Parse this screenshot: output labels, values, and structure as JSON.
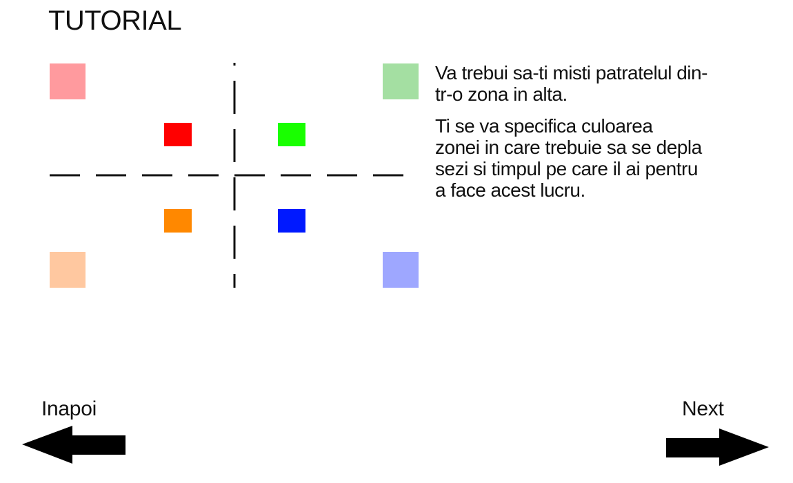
{
  "header": {
    "title": "TUTORIAL"
  },
  "colors": {
    "red": "#ff0000",
    "green": "#19ff00",
    "orange": "#ff8800",
    "blue": "#0019ff",
    "red_zone": "#ff9a9e",
    "green_zone": "#a4dfa2",
    "orange_zone": "#ffc8a0",
    "blue_zone": "#9ea7ff",
    "divider": "#111111",
    "arrow": "#000000"
  },
  "instructions": {
    "paragraph_1": "Va trebui sa-ti misti patratelul din-\ntr-o zona in alta.",
    "paragraph_2": "Ti se va specifica culoarea\nzonei in care trebuie sa se depla\nsezi si timpul pe care il ai pentru\na face acest lucru."
  },
  "navigation": {
    "back_label": "Inapoi",
    "next_label": "Next"
  }
}
